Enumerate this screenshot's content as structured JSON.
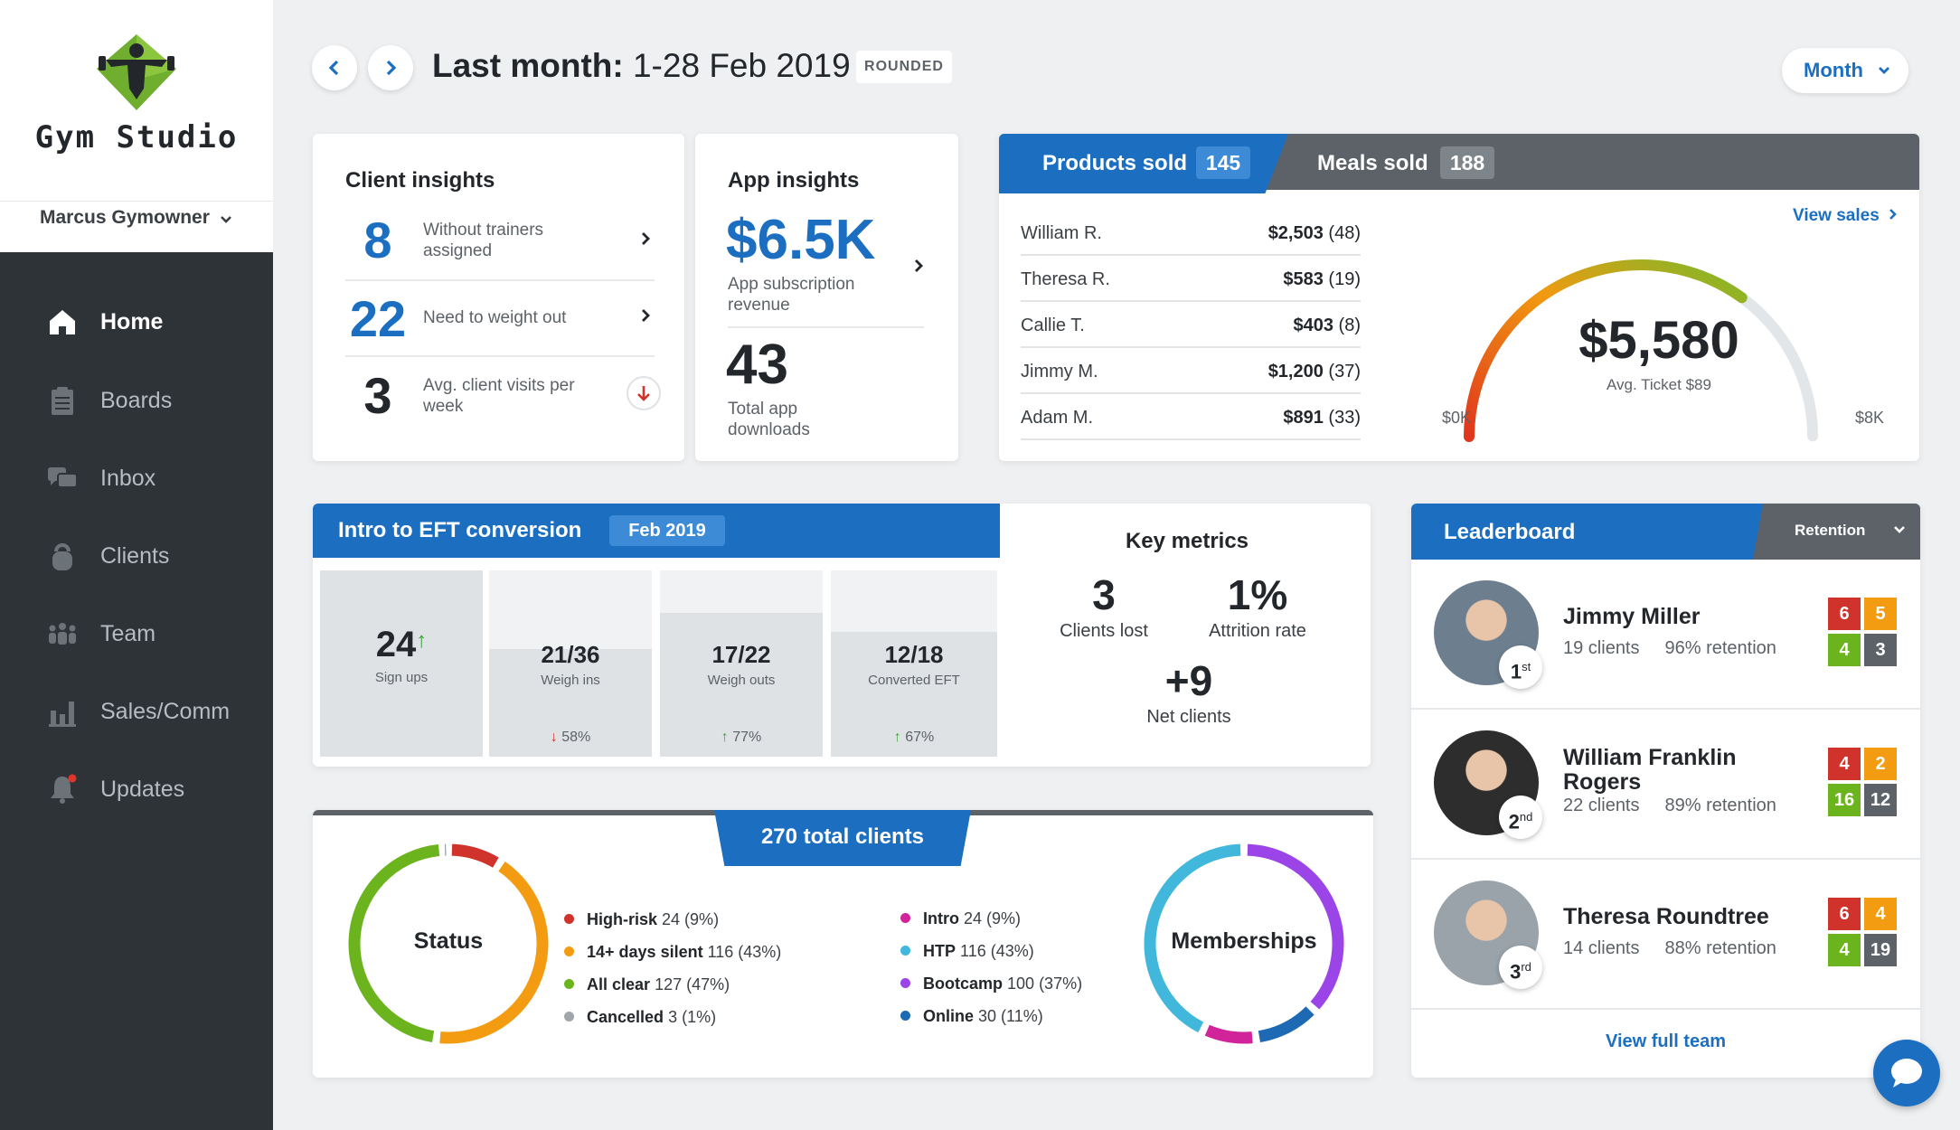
{
  "app": {
    "brand": "Gym Studio",
    "user": "Marcus Gymowner"
  },
  "nav": [
    {
      "label": "Home",
      "icon": "home-icon",
      "active": true
    },
    {
      "label": "Boards",
      "icon": "clipboard-icon"
    },
    {
      "label": "Inbox",
      "icon": "chat-icon"
    },
    {
      "label": "Clients",
      "icon": "kettlebell-icon"
    },
    {
      "label": "Team",
      "icon": "team-icon"
    },
    {
      "label": "Sales/Comm",
      "icon": "bar-chart-icon"
    },
    {
      "label": "Updates",
      "icon": "bell-icon",
      "notification": true
    }
  ],
  "header": {
    "title_bold": "Last month:",
    "title_range": "1-28 Feb 2019",
    "badge": "ROUNDED",
    "period": "Month"
  },
  "client_insights": {
    "title": "Client insights",
    "items": [
      {
        "value": "8",
        "label": "Without trainers assigned"
      },
      {
        "value": "22",
        "label": "Need to weight out"
      },
      {
        "value": "3",
        "label": "Avg. client visits per week"
      }
    ]
  },
  "app_insights": {
    "title": "App insights",
    "revenue": "$6.5K",
    "revenue_label": "App subscription revenue",
    "downloads": "43",
    "downloads_label": "Total app downloads"
  },
  "sales": {
    "tabs": [
      {
        "label": "Products sold",
        "count": "145"
      },
      {
        "label": "Meals sold",
        "count": "188"
      }
    ],
    "view_link": "View sales",
    "rows": [
      {
        "name": "William R.",
        "amount": "$2,503",
        "count": "(48)"
      },
      {
        "name": "Theresa R.",
        "amount": "$583",
        "count": "(19)"
      },
      {
        "name": "Callie T.",
        "amount": "$403",
        "count": "(8)"
      },
      {
        "name": "Jimmy M.",
        "amount": "$1,200",
        "count": "(37)"
      },
      {
        "name": "Adam M.",
        "amount": "$891",
        "count": "(33)"
      }
    ],
    "gauge": {
      "value": "$5,580",
      "label": "Avg. Ticket",
      "ticket": "$89",
      "min": "$0K",
      "max": "$8K",
      "fraction": 0.7
    }
  },
  "eft": {
    "title": "Intro to EFT conversion",
    "period": "Feb 2019",
    "steps": [
      {
        "value": "24",
        "caption": "Sign ups",
        "trend": "up",
        "fill": 1.0
      },
      {
        "value": "21/36",
        "caption": "Weigh ins",
        "pct": "58%",
        "trend": "down",
        "fill": 0.58
      },
      {
        "value": "17/22",
        "caption": "Weigh outs",
        "pct": "77%",
        "trend": "up",
        "fill": 0.77
      },
      {
        "value": "12/18",
        "caption": "Converted EFT",
        "pct": "67%",
        "trend": "up",
        "fill": 0.67
      }
    ]
  },
  "key_metrics": {
    "title": "Key metrics",
    "items": [
      {
        "value": "3",
        "label": "Clients lost"
      },
      {
        "value": "1%",
        "label": "Attrition rate"
      },
      {
        "value": "+9",
        "label": "Net clients"
      }
    ]
  },
  "clients": {
    "banner": "270 total clients",
    "status": {
      "title": "Status",
      "items": [
        {
          "name": "High-risk",
          "value": "24 (9%)",
          "color": "#d0332c",
          "share": 0.09
        },
        {
          "name": "14+ days silent",
          "value": "116 (43%)",
          "color": "#f39c12",
          "share": 0.43
        },
        {
          "name": "All clear",
          "value": "127 (47%)",
          "color": "#6cb41e",
          "share": 0.47
        },
        {
          "name": "Cancelled",
          "value": "3 (1%)",
          "color": "#a0a5aa",
          "share": 0.01
        }
      ]
    },
    "memberships": {
      "title": "Memberships",
      "items": [
        {
          "name": "Intro",
          "value": "24 (9%)",
          "color": "#d1239a",
          "share": 0.09
        },
        {
          "name": "HTP",
          "value": "116 (43%)",
          "color": "#41b7dc",
          "share": 0.43
        },
        {
          "name": "Bootcamp",
          "value": "100 (37%)",
          "color": "#9b45e8",
          "share": 0.37
        },
        {
          "name": "Online",
          "value": "30 (11%)",
          "color": "#1d69b3",
          "share": 0.11
        }
      ]
    }
  },
  "leaderboard": {
    "title": "Leaderboard",
    "filter": "Retention",
    "entries": [
      {
        "rank": "1",
        "suffix": "st",
        "name": "Jimmy Miller",
        "clients": "19 clients",
        "retention": "96% retention",
        "scores": [
          "6",
          "5",
          "4",
          "3"
        ]
      },
      {
        "rank": "2",
        "suffix": "nd",
        "name": "William Franklin Rogers",
        "clients": "22 clients",
        "retention": "89% retention",
        "scores": [
          "4",
          "2",
          "16",
          "12"
        ]
      },
      {
        "rank": "3",
        "suffix": "rd",
        "name": "Theresa Roundtree",
        "clients": "14 clients",
        "retention": "88% retention",
        "scores": [
          "6",
          "4",
          "4",
          "19"
        ]
      }
    ],
    "view_all": "View full team"
  }
}
